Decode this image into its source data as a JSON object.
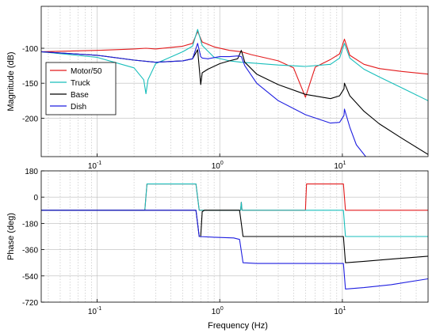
{
  "xlabel": "Frequency  (Hz)",
  "colors": {
    "motor": "#e31a1c",
    "truck": "#17bebb",
    "base": "#000000",
    "dish": "#1f1fe0",
    "grid": "#bbbbbb",
    "axes": "#000000"
  },
  "chart_data": [
    {
      "type": "line",
      "id": "magnitude",
      "title": "",
      "ylabel": "Magnitude (dB)",
      "xscale": "log",
      "xlim": [
        0.035,
        50
      ],
      "ylim": [
        -255,
        -40
      ],
      "xticks": [
        0.1,
        1,
        10
      ],
      "xtick_labels": [
        {
          "base": "10",
          "exp": "-1"
        },
        {
          "base": "10",
          "exp": "0"
        },
        {
          "base": "10",
          "exp": "1"
        }
      ],
      "yticks": [
        -100,
        -150,
        -200
      ],
      "ytick_labels": [
        "-100",
        "-150",
        "-200"
      ],
      "grid": true,
      "legend_position": "middle-left",
      "series": [
        {
          "name": "Motor/50",
          "color_key": "motor",
          "x": [
            0.035,
            0.1,
            0.2,
            0.25,
            0.3,
            0.5,
            0.6,
            0.66,
            0.72,
            0.9,
            1.2,
            1.5,
            1.8,
            3,
            4,
            5,
            6,
            8,
            9.5,
            10.4,
            11.5,
            15,
            20,
            30,
            50
          ],
          "y": [
            -105,
            -103,
            -101,
            -100,
            -101,
            -97,
            -93,
            -76,
            -91,
            -98,
            -103,
            -105,
            -109,
            -118,
            -128,
            -170,
            -127,
            -116,
            -108,
            -87,
            -110,
            -123,
            -129,
            -133,
            -137
          ]
        },
        {
          "name": "Truck",
          "color_key": "truck",
          "x": [
            0.035,
            0.1,
            0.2,
            0.24,
            0.25,
            0.26,
            0.3,
            0.5,
            0.6,
            0.66,
            0.72,
            0.9,
            1.2,
            1.5,
            1.8,
            3,
            5,
            8,
            9.5,
            10.4,
            11.5,
            15,
            20,
            30,
            50
          ],
          "y": [
            -105,
            -113,
            -128,
            -145,
            -165,
            -145,
            -122,
            -105,
            -97,
            -73,
            -96,
            -113,
            -118,
            -120,
            -121,
            -124,
            -126,
            -123,
            -114,
            -93,
            -114,
            -130,
            -141,
            -156,
            -175
          ]
        },
        {
          "name": "Base",
          "color_key": "base",
          "x": [
            0.035,
            0.1,
            0.2,
            0.3,
            0.5,
            0.6,
            0.66,
            0.7,
            0.72,
            0.8,
            1.0,
            1.2,
            1.4,
            1.5,
            1.6,
            2,
            3,
            5,
            8,
            9.5,
            10.3,
            10.4,
            11.5,
            15,
            20,
            30,
            50
          ],
          "y": [
            -105,
            -110,
            -117,
            -120,
            -118,
            -115,
            -102,
            -152,
            -135,
            -130,
            -122,
            -118,
            -115,
            -103,
            -120,
            -137,
            -152,
            -166,
            -172,
            -168,
            -158,
            -150,
            -168,
            -190,
            -208,
            -228,
            -252
          ]
        },
        {
          "name": "Dish",
          "color_key": "dish",
          "x": [
            0.035,
            0.1,
            0.2,
            0.3,
            0.5,
            0.6,
            0.66,
            0.7,
            0.72,
            0.8,
            1.0,
            1.2,
            1.4,
            1.5,
            1.6,
            2,
            3,
            5,
            8,
            9.5,
            10.3,
            10.4,
            11.5,
            13,
            16
          ],
          "y": [
            -105,
            -110,
            -117,
            -120,
            -118,
            -115,
            -93,
            -112,
            -114,
            -115,
            -112,
            -112,
            -111,
            -112,
            -125,
            -150,
            -175,
            -195,
            -207,
            -206,
            -196,
            -187,
            -213,
            -238,
            -258
          ]
        }
      ]
    },
    {
      "type": "line",
      "id": "phase",
      "title": "",
      "ylabel": "Phase (deg)",
      "xscale": "log",
      "xlim": [
        0.035,
        50
      ],
      "ylim": [
        -720,
        180
      ],
      "xticks": [
        0.1,
        1,
        10
      ],
      "xtick_labels": [
        {
          "base": "10",
          "exp": "-1"
        },
        {
          "base": "10",
          "exp": "0"
        },
        {
          "base": "10",
          "exp": "1"
        }
      ],
      "yticks": [
        180,
        0,
        -180,
        -360,
        -540,
        -720
      ],
      "ytick_labels": [
        "180",
        "0",
        "-180",
        "-360",
        "-540",
        "-720"
      ],
      "grid": true,
      "series": [
        {
          "name": "Motor/50",
          "color_key": "motor",
          "x": [
            0.035,
            0.245,
            0.255,
            0.64,
            0.68,
            1.48,
            1.5,
            1.52,
            5.0,
            5.1,
            10.2,
            10.6,
            50
          ],
          "y": [
            -90,
            -90,
            90,
            90,
            -90,
            -90,
            -35,
            -90,
            -90,
            90,
            90,
            -90,
            -90
          ]
        },
        {
          "name": "Truck",
          "color_key": "truck",
          "x": [
            0.035,
            0.245,
            0.255,
            0.64,
            0.68,
            1.48,
            1.5,
            1.52,
            10.2,
            10.6,
            50
          ],
          "y": [
            -90,
            -90,
            90,
            90,
            -90,
            -90,
            -35,
            -90,
            -90,
            -270,
            -270
          ]
        },
        {
          "name": "Base",
          "color_key": "base",
          "x": [
            0.035,
            0.64,
            0.68,
            0.7,
            0.72,
            0.75,
            1.45,
            1.55,
            10.2,
            10.6,
            15,
            25,
            50
          ],
          "y": [
            -90,
            -90,
            -270,
            -270,
            -100,
            -90,
            -90,
            -270,
            -270,
            -450,
            -440,
            -425,
            -405
          ]
        },
        {
          "name": "Dish",
          "color_key": "dish",
          "x": [
            0.035,
            0.64,
            0.68,
            0.9,
            1.3,
            1.45,
            1.55,
            2,
            10.2,
            10.6,
            15,
            25,
            50
          ],
          "y": [
            -90,
            -90,
            -270,
            -275,
            -280,
            -290,
            -450,
            -455,
            -455,
            -630,
            -620,
            -600,
            -560
          ]
        }
      ]
    }
  ]
}
